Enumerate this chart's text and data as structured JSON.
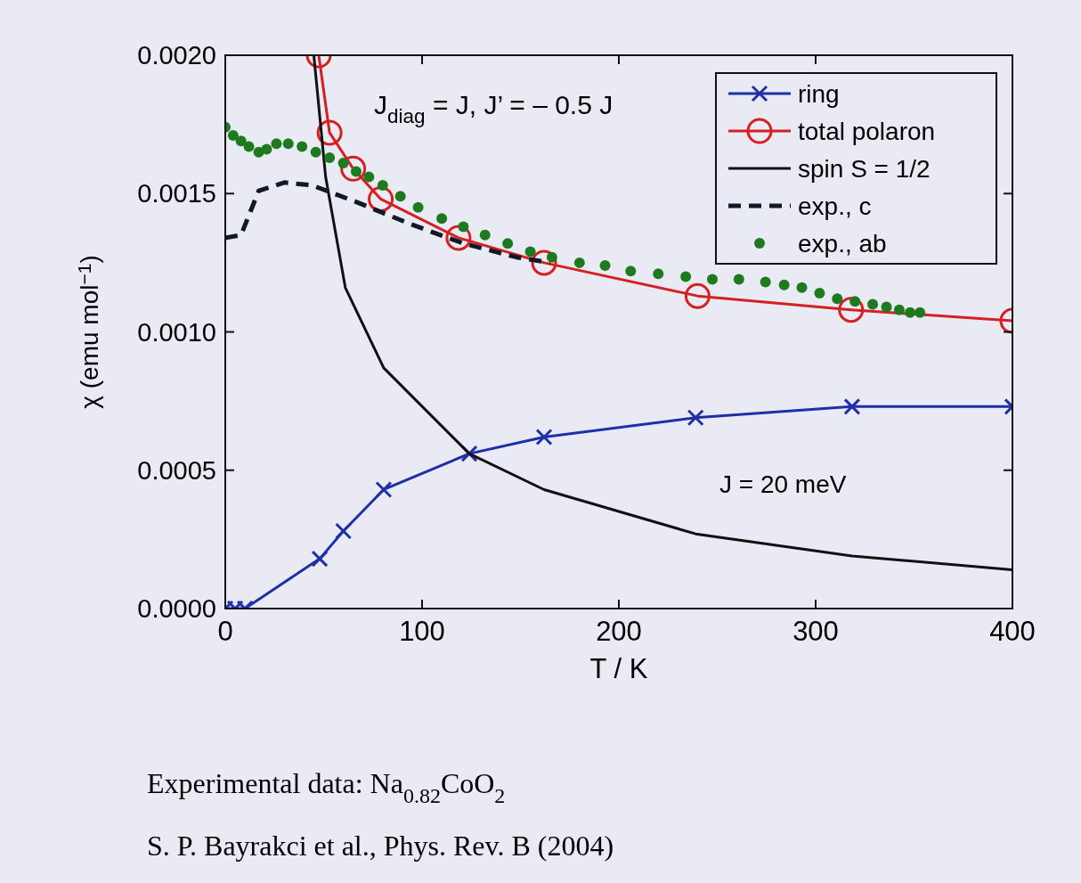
{
  "chart_data": {
    "type": "line",
    "xlabel": "T / K",
    "ylabel": "χ (emu mol$^{−1}$)",
    "xlim": [
      0,
      400
    ],
    "xticks": [
      0,
      100,
      200,
      300,
      400
    ],
    "ylim": [
      0,
      0.002
    ],
    "yticks": [
      {
        "value": 0,
        "label": "0.0000"
      },
      {
        "value": 0.0005,
        "label": "0.0005"
      },
      {
        "value": 0.001,
        "label": "0.0010"
      },
      {
        "value": 0.0015,
        "label": "0.0015"
      },
      {
        "value": 0.002,
        "label": "0.0020"
      }
    ],
    "grid": false,
    "legend": "top right",
    "series": [
      {
        "name": "ring",
        "color": "#1f2fa8",
        "marker": "cross",
        "line_style": "solid",
        "x": [
          0,
          5,
          10,
          48,
          60,
          80.5,
          124,
          162,
          239,
          318.5,
          400
        ],
        "values": [
          0,
          0,
          0,
          0.00018,
          0.00028,
          0.00043,
          0.00056,
          0.00062,
          0.00069,
          0.00073,
          0.00073
        ]
      },
      {
        "name": "total polaron",
        "color": "#d42020",
        "marker": "circle",
        "line_style": "solid",
        "x": [
          47.5,
          53,
          65,
          79,
          118.5,
          162,
          240,
          318,
          400
        ],
        "values": [
          0.002,
          0.00172,
          0.00159,
          0.00148,
          0.00134,
          0.00125,
          0.00113,
          0.00108,
          0.00104
        ]
      },
      {
        "name": "spin S = 1/2",
        "color": "#111111",
        "marker": "none",
        "line_style": "solid",
        "x": [
          45,
          51,
          61,
          80.5,
          124,
          162,
          239,
          318.5,
          400
        ],
        "values": [
          0.002,
          0.00156,
          0.00116,
          0.00087,
          0.00056,
          0.00043,
          0.00027,
          0.00019,
          0.00014
        ]
      },
      {
        "name": "exp., c",
        "color": "#111827",
        "marker": "none",
        "line_style": "dashed",
        "x": [
          0,
          8,
          17,
          30,
          44,
          66.5,
          94,
          121,
          148,
          165
        ],
        "values": [
          0.00134,
          0.00135,
          0.00151,
          0.00154,
          0.00153,
          0.00147,
          0.00139,
          0.00132,
          0.00127,
          0.00125
        ]
      },
      {
        "name": "exp., ab",
        "type": "scatter",
        "color": "#1e7a1e",
        "marker": "circle",
        "x": [
          0,
          4,
          8,
          12,
          17,
          21,
          26,
          32,
          39,
          46,
          53,
          60,
          66.5,
          73,
          80,
          89,
          98,
          110,
          121,
          132,
          143.5,
          155,
          166,
          180,
          193,
          206,
          220,
          234,
          247.5,
          261,
          274.5,
          284,
          293,
          302,
          311,
          320,
          329,
          336,
          342.5,
          348,
          353
        ],
        "values": [
          0.00174,
          0.00171,
          0.00169,
          0.00167,
          0.00165,
          0.00166,
          0.00168,
          0.00168,
          0.00167,
          0.00165,
          0.00163,
          0.00161,
          0.00158,
          0.00156,
          0.00153,
          0.00149,
          0.00145,
          0.00141,
          0.00138,
          0.00135,
          0.00132,
          0.00129,
          0.00127,
          0.00125,
          0.00124,
          0.00122,
          0.00121,
          0.0012,
          0.00119,
          0.00119,
          0.00118,
          0.00117,
          0.00116,
          0.00114,
          0.00112,
          0.00111,
          0.0011,
          0.00109,
          0.00108,
          0.00107,
          0.00107
        ]
      }
    ],
    "annotations": [
      "J$_{diag}$ = J,  J’ = – 0.5 J",
      "J = 20 meV",
      "Experimental data:  Na$_{0.82}$CoO$_{2}$",
      "S. P. Bayrakci et al., Phys. Rev. B (2004)"
    ]
  }
}
